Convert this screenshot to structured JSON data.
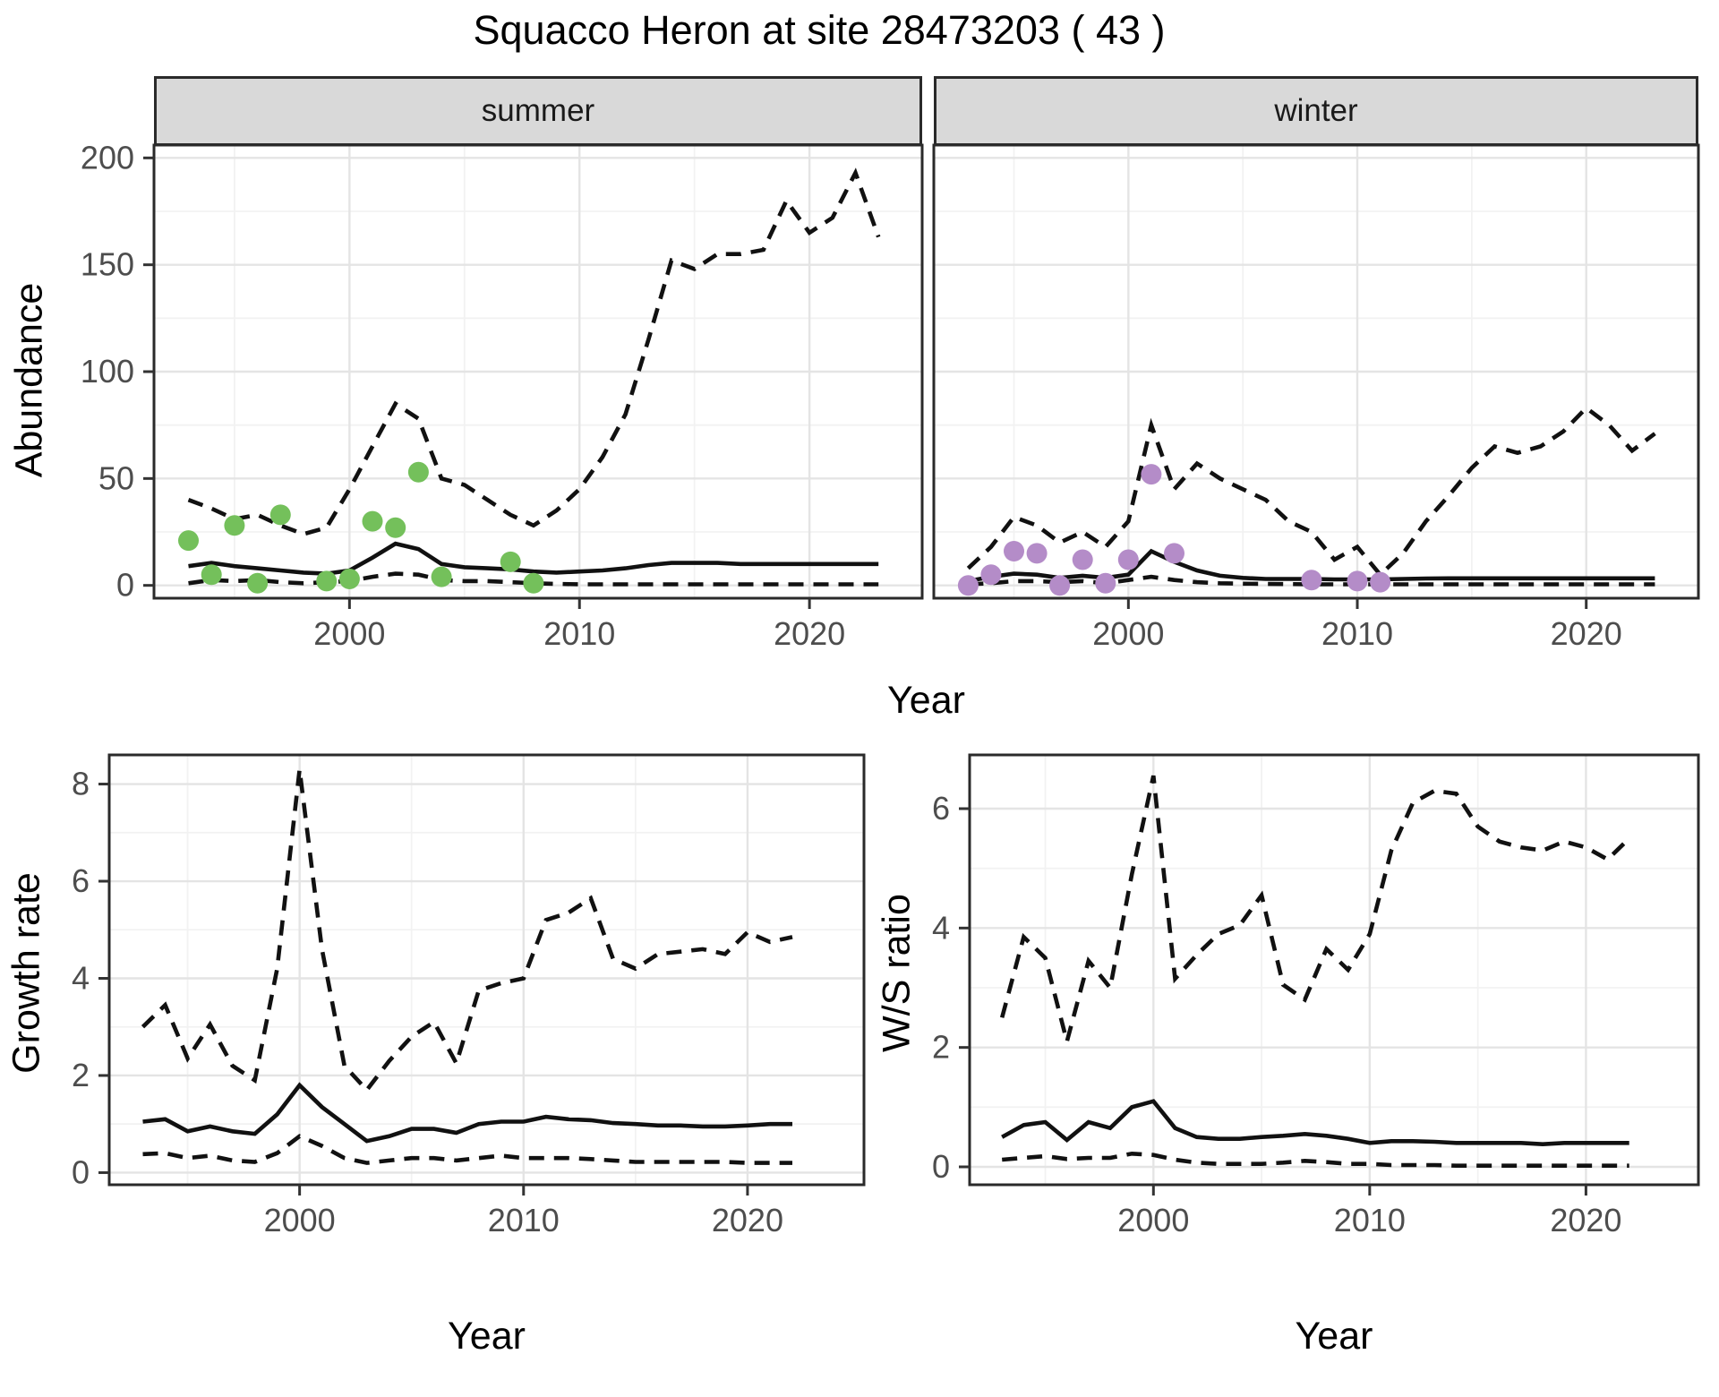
{
  "title": "Squacco Heron at site 28473203 ( 43 )",
  "facets": {
    "summer": "summer",
    "winter": "winter"
  },
  "labels": {
    "year": "Year",
    "abundance": "Abundance",
    "growth_rate": "Growth rate",
    "ws_ratio": "W/S ratio"
  },
  "colors": {
    "summer_point": "#74C05B",
    "winter_point": "#B48CC8",
    "line": "#111111",
    "axis_text": "#4d4d4d",
    "grid_major": "#e4e4e4",
    "grid_minor": "#f2f2f2",
    "panel_border": "#2a2a2a",
    "strip_fill": "#d9d9d9"
  },
  "chart_data": [
    {
      "id": "abundance_summer",
      "type": "line",
      "facet": "summer",
      "ylabel": "Abundance",
      "xlabel": "Year",
      "xlim": [
        1991.5,
        2024.9
      ],
      "ylim": [
        -6,
        206
      ],
      "xticks": [
        2000,
        2010,
        2020
      ],
      "yticks": [
        0,
        50,
        100,
        150,
        200
      ],
      "xminor": [
        1995,
        2005,
        2015
      ],
      "yminor": [
        25,
        75,
        125,
        175
      ],
      "x": [
        1993,
        1994,
        1995,
        1996,
        1997,
        1998,
        1999,
        2000,
        2001,
        2002,
        2003,
        2004,
        2005,
        2006,
        2007,
        2008,
        2009,
        2010,
        2011,
        2012,
        2013,
        2014,
        2015,
        2016,
        2017,
        2018,
        2019,
        2020,
        2021,
        2022,
        2023
      ],
      "series": [
        {
          "name": "upper_95",
          "style": "dashed",
          "values": [
            40,
            36,
            31,
            33,
            28,
            24,
            27,
            45,
            65,
            85,
            78,
            50,
            47,
            40,
            33,
            28,
            35,
            45,
            60,
            80,
            115,
            152,
            148,
            155,
            155,
            157,
            180,
            165,
            172,
            193,
            163
          ]
        },
        {
          "name": "median",
          "style": "solid",
          "values": [
            9,
            10.5,
            9,
            8,
            7,
            6,
            5.5,
            7,
            13,
            19.5,
            17,
            10,
            8.5,
            8,
            7.5,
            6.5,
            6,
            6.5,
            7,
            8,
            9.5,
            10.5,
            10.5,
            10.5,
            10,
            10,
            10,
            10,
            10,
            10,
            10
          ]
        },
        {
          "name": "lower_95",
          "style": "dashed",
          "values": [
            1,
            2.5,
            2,
            2.5,
            1.5,
            1,
            1.5,
            2,
            4,
            5.5,
            5,
            2.5,
            2,
            2,
            1.5,
            1,
            0.7,
            0.5,
            0.5,
            0.5,
            0.5,
            0.5,
            0.5,
            0.5,
            0.5,
            0.5,
            0.5,
            0.5,
            0.5,
            0.5,
            0.5
          ]
        }
      ],
      "points": {
        "color": "#74C05B",
        "x": [
          1993,
          1994,
          1995,
          1996,
          1997,
          1999,
          2000,
          2001,
          2002,
          2003,
          2004,
          2007,
          2008
        ],
        "y": [
          21,
          5,
          28,
          1,
          33,
          2,
          3,
          30,
          27,
          53,
          4,
          11,
          1
        ]
      }
    },
    {
      "id": "abundance_winter",
      "type": "line",
      "facet": "winter",
      "ylabel": "Abundance",
      "xlabel": "Year",
      "xlim": [
        1991.5,
        2024.9
      ],
      "ylim": [
        -6,
        206
      ],
      "xticks": [
        2000,
        2010,
        2020
      ],
      "yticks": [
        0,
        50,
        100,
        150,
        200
      ],
      "xminor": [
        1995,
        2005,
        2015
      ],
      "yminor": [
        25,
        75,
        125,
        175
      ],
      "x": [
        1993,
        1994,
        1995,
        1996,
        1997,
        1998,
        1999,
        2000,
        2001,
        2002,
        2003,
        2004,
        2005,
        2006,
        2007,
        2008,
        2009,
        2010,
        2011,
        2012,
        2013,
        2014,
        2015,
        2016,
        2017,
        2018,
        2019,
        2020,
        2021,
        2022,
        2023
      ],
      "series": [
        {
          "name": "upper_95",
          "style": "dashed",
          "values": [
            8,
            18,
            32,
            28,
            20,
            25,
            18,
            30,
            75,
            45,
            57,
            50,
            45,
            40,
            30,
            25,
            12,
            18,
            5,
            15,
            30,
            42,
            55,
            65,
            62,
            65,
            72,
            83,
            75,
            63,
            71
          ]
        },
        {
          "name": "median",
          "style": "solid",
          "values": [
            2,
            4,
            5.5,
            5,
            3.5,
            4.5,
            3.5,
            5,
            16,
            11,
            7,
            4.5,
            3.5,
            3,
            3,
            3,
            2.8,
            2.8,
            2.8,
            3,
            3.2,
            3.3,
            3.3,
            3.3,
            3.3,
            3.3,
            3.3,
            3.3,
            3.3,
            3.3,
            3.3
          ]
        },
        {
          "name": "lower_95",
          "style": "dashed",
          "values": [
            0.5,
            1,
            2,
            2,
            1.5,
            2,
            1,
            2.5,
            4,
            2.5,
            1.5,
            1,
            0.8,
            0.7,
            0.6,
            0.5,
            0.5,
            0.5,
            0.5,
            0.5,
            0.5,
            0.5,
            0.5,
            0.5,
            0.5,
            0.5,
            0.5,
            0.5,
            0.5,
            0.5,
            0.5
          ]
        }
      ],
      "points": {
        "color": "#B48CC8",
        "x": [
          1993,
          1994,
          1995,
          1996,
          1997,
          1998,
          1999,
          2000,
          2001,
          2002,
          2008,
          2010,
          2011
        ],
        "y": [
          0,
          5,
          16,
          15,
          0,
          12,
          1,
          12,
          52,
          15,
          2.5,
          2,
          1.5
        ]
      }
    },
    {
      "id": "growth_rate",
      "type": "line",
      "ylabel": "Growth rate",
      "xlabel": "Year",
      "xlim": [
        1991.5,
        2025.2
      ],
      "ylim": [
        -0.25,
        8.6
      ],
      "xticks": [
        2000,
        2010,
        2020
      ],
      "yticks": [
        0,
        2,
        4,
        6,
        8
      ],
      "xminor": [
        1995,
        2005,
        2015
      ],
      "yminor": [
        1,
        3,
        5,
        7
      ],
      "x": [
        1993,
        1994,
        1995,
        1996,
        1997,
        1998,
        1999,
        2000,
        2001,
        2002,
        2003,
        2004,
        2005,
        2006,
        2007,
        2008,
        2009,
        2010,
        2011,
        2012,
        2013,
        2014,
        2015,
        2016,
        2017,
        2018,
        2019,
        2020,
        2021,
        2022
      ],
      "series": [
        {
          "name": "upper_95",
          "style": "dashed",
          "values": [
            3.0,
            3.45,
            2.35,
            3.05,
            2.2,
            1.9,
            4.2,
            8.3,
            4.6,
            2.2,
            1.7,
            2.3,
            2.8,
            3.1,
            2.25,
            3.75,
            3.9,
            4.0,
            5.2,
            5.35,
            5.65,
            4.4,
            4.2,
            4.5,
            4.55,
            4.6,
            4.5,
            4.95,
            4.75,
            4.85
          ]
        },
        {
          "name": "median",
          "style": "solid",
          "values": [
            1.05,
            1.1,
            0.85,
            0.95,
            0.85,
            0.8,
            1.2,
            1.8,
            1.35,
            1.0,
            0.65,
            0.75,
            0.9,
            0.9,
            0.82,
            1.0,
            1.05,
            1.05,
            1.15,
            1.1,
            1.08,
            1.02,
            1.0,
            0.97,
            0.97,
            0.95,
            0.95,
            0.97,
            1.0,
            1.0
          ]
        },
        {
          "name": "lower_95",
          "style": "dashed",
          "values": [
            0.38,
            0.4,
            0.3,
            0.35,
            0.25,
            0.22,
            0.4,
            0.75,
            0.55,
            0.3,
            0.2,
            0.25,
            0.3,
            0.3,
            0.25,
            0.3,
            0.35,
            0.3,
            0.3,
            0.3,
            0.28,
            0.25,
            0.22,
            0.22,
            0.22,
            0.22,
            0.22,
            0.2,
            0.2,
            0.2
          ]
        }
      ]
    },
    {
      "id": "ws_ratio",
      "type": "line",
      "ylabel": "W/S ratio",
      "xlabel": "Year",
      "xlim": [
        1991.5,
        2025.2
      ],
      "ylim": [
        -0.3,
        6.9
      ],
      "xticks": [
        2000,
        2010,
        2020
      ],
      "yticks": [
        0,
        2,
        4,
        6
      ],
      "xminor": [
        1995,
        2005,
        2015
      ],
      "yminor": [
        1,
        3,
        5
      ],
      "x": [
        1993,
        1994,
        1995,
        1996,
        1997,
        1998,
        1999,
        2000,
        2001,
        2002,
        2003,
        2004,
        2005,
        2006,
        2007,
        2008,
        2009,
        2010,
        2011,
        2012,
        2013,
        2014,
        2015,
        2016,
        2017,
        2018,
        2019,
        2020,
        2021,
        2022
      ],
      "series": [
        {
          "name": "upper_95",
          "style": "dashed",
          "values": [
            2.5,
            3.85,
            3.5,
            2.1,
            3.45,
            3.0,
            4.9,
            6.55,
            3.15,
            3.55,
            3.9,
            4.05,
            4.55,
            3.05,
            2.8,
            3.65,
            3.3,
            3.9,
            5.3,
            6.1,
            6.3,
            6.25,
            5.7,
            5.45,
            5.35,
            5.3,
            5.45,
            5.35,
            5.15,
            5.5
          ]
        },
        {
          "name": "median",
          "style": "solid",
          "values": [
            0.5,
            0.7,
            0.75,
            0.45,
            0.75,
            0.65,
            1.0,
            1.1,
            0.65,
            0.5,
            0.47,
            0.47,
            0.5,
            0.52,
            0.55,
            0.52,
            0.47,
            0.4,
            0.43,
            0.43,
            0.42,
            0.4,
            0.4,
            0.4,
            0.4,
            0.38,
            0.4,
            0.4,
            0.4,
            0.4
          ]
        },
        {
          "name": "lower_95",
          "style": "dashed",
          "values": [
            0.12,
            0.15,
            0.18,
            0.13,
            0.15,
            0.15,
            0.22,
            0.2,
            0.12,
            0.07,
            0.05,
            0.05,
            0.05,
            0.07,
            0.1,
            0.08,
            0.05,
            0.05,
            0.03,
            0.03,
            0.03,
            0.02,
            0.02,
            0.02,
            0.02,
            0.02,
            0.02,
            0.02,
            0.02,
            0.02
          ]
        }
      ]
    }
  ]
}
